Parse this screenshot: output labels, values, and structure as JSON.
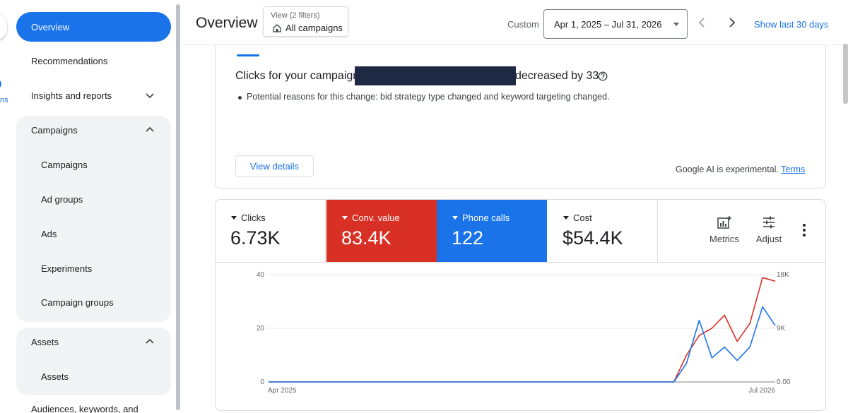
{
  "nav": {
    "stub_text": "ns",
    "items": {
      "overview": "Overview",
      "recommendations": "Recommendations",
      "insights": "Insights and reports",
      "campaigns_group": "Campaigns",
      "campaigns": "Campaigns",
      "ad_groups": "Ad groups",
      "ads": "Ads",
      "experiments": "Experiments",
      "campaign_groups": "Campaign groups",
      "assets_group": "Assets",
      "assets": "Assets",
      "audiences": "Audiences, keywords, and"
    }
  },
  "header": {
    "title": "Overview",
    "view_filter_label": "View (2 filters)",
    "view_filter_value": "All campaigns",
    "custom_label": "Custom",
    "date_range": "Apr 1, 2025 – Jul 31, 2026",
    "show_last": "Show last 30 days"
  },
  "insight": {
    "title_start": "Clicks for your campaign",
    "title_end": "decreased by 33",
    "reason": "Potential reasons for this change: bid strategy type changed and keyword targeting changed.",
    "view_details": "View details",
    "ai_note": "Google AI is experimental.",
    "terms": "Terms"
  },
  "metrics": {
    "tiles": [
      {
        "label": "Clicks",
        "value": "6.73K",
        "color": "#ffffff"
      },
      {
        "label": "Conv. value",
        "value": "83.4K",
        "color": "#d93025"
      },
      {
        "label": "Phone calls",
        "value": "122",
        "color": "#1a73e8"
      },
      {
        "label": "Cost",
        "value": "$54.4K",
        "color": "#ffffff"
      }
    ],
    "metrics_button": "Metrics",
    "adjust_button": "Adjust"
  },
  "chart_data": {
    "type": "line",
    "x_tick_labels": [
      "Apr 2025",
      "Jul 2026"
    ],
    "left_axis": {
      "ticks": [
        "0",
        "20",
        "40"
      ],
      "ylim": [
        0,
        40
      ]
    },
    "right_axis": {
      "ticks": [
        "0.00",
        "9K",
        "18K"
      ],
      "ylim": [
        0,
        18000
      ]
    },
    "grid": true,
    "series": [
      {
        "name": "Conv. value",
        "color": "#d93025",
        "axis": "right",
        "values": [
          0,
          0,
          0,
          0,
          0,
          0,
          0,
          0,
          0,
          0,
          0,
          0,
          0,
          0,
          0,
          0,
          0,
          0,
          0,
          0,
          0,
          0,
          0,
          0,
          0,
          0,
          0,
          0,
          0,
          0,
          0,
          0,
          0,
          4500,
          7800,
          9000,
          11200,
          6800,
          9800,
          17500,
          16900
        ]
      },
      {
        "name": "Phone calls",
        "color": "#1a73e8",
        "axis": "left",
        "values": [
          0,
          0,
          0,
          0,
          0,
          0,
          0,
          0,
          0,
          0,
          0,
          0,
          0,
          0,
          0,
          0,
          0,
          0,
          0,
          0,
          0,
          0,
          0,
          0,
          0,
          0,
          0,
          0,
          0,
          0,
          0,
          0,
          0,
          7,
          23,
          9,
          13,
          8,
          13,
          28,
          21
        ]
      }
    ]
  }
}
